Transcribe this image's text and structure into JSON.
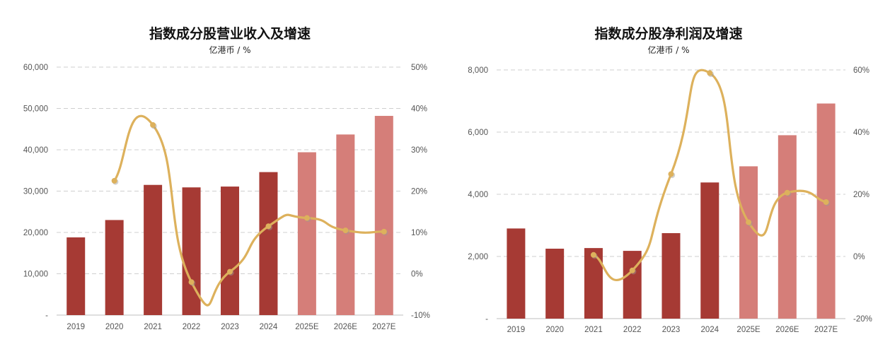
{
  "colors": {
    "actual_bar": "#A63A34",
    "estimate_bar": "#D57E79",
    "growth_line": "#DDB15C",
    "grid": "#CFCFCF"
  },
  "chart_data": [
    {
      "type": "bar",
      "title": "指数成分股营业收入及增速",
      "subtitle": "亿港币 / %",
      "categories": [
        "2019",
        "2020",
        "2021",
        "2022",
        "2023",
        "2024",
        "2025E",
        "2026E",
        "2027E"
      ],
      "estimate_categories": [
        "2025E",
        "2026E",
        "2027E"
      ],
      "series": [
        {
          "name": "营业收入",
          "axis": "left",
          "type": "bar",
          "values": [
            18800,
            23000,
            31500,
            30900,
            31100,
            34600,
            39400,
            43700,
            48200
          ]
        },
        {
          "name": "增速",
          "axis": "right",
          "type": "line",
          "values": [
            null,
            22.5,
            36.0,
            -2.0,
            0.5,
            11.5,
            13.5,
            10.5,
            10.2
          ]
        }
      ],
      "left_axis": {
        "ylim": [
          0,
          60000
        ],
        "ticks": [
          "-",
          "10,000",
          "20,000",
          "30,000",
          "40,000",
          "50,000",
          "60,000"
        ]
      },
      "right_axis": {
        "ylim": [
          -10,
          50
        ],
        "ticks": [
          "-10%",
          "0%",
          "10%",
          "20%",
          "30%",
          "40%",
          "50%"
        ]
      },
      "grid": true
    },
    {
      "type": "bar",
      "title": "指数成分股净利润及增速",
      "subtitle": "亿港币 / %",
      "categories": [
        "2019",
        "2020",
        "2021",
        "2022",
        "2023",
        "2024",
        "2025E",
        "2026E",
        "2027E"
      ],
      "estimate_categories": [
        "2025E",
        "2026E",
        "2027E"
      ],
      "series": [
        {
          "name": "净利润",
          "axis": "left",
          "type": "bar",
          "values": [
            2900,
            2250,
            2270,
            2180,
            2750,
            4380,
            4900,
            5900,
            6920
          ]
        },
        {
          "name": "增速",
          "axis": "right",
          "type": "line",
          "values": [
            null,
            null,
            0.5,
            -4.5,
            26.5,
            59.0,
            11.0,
            20.5,
            17.5
          ]
        }
      ],
      "left_axis": {
        "ylim": [
          0,
          8000
        ],
        "ticks": [
          "-",
          "2,000",
          "4,000",
          "6,000",
          "8,000"
        ]
      },
      "right_axis": {
        "ylim": [
          -20,
          60
        ],
        "ticks": [
          "-20%",
          "0%",
          "20%",
          "40%",
          "60%"
        ]
      },
      "grid": true
    }
  ]
}
